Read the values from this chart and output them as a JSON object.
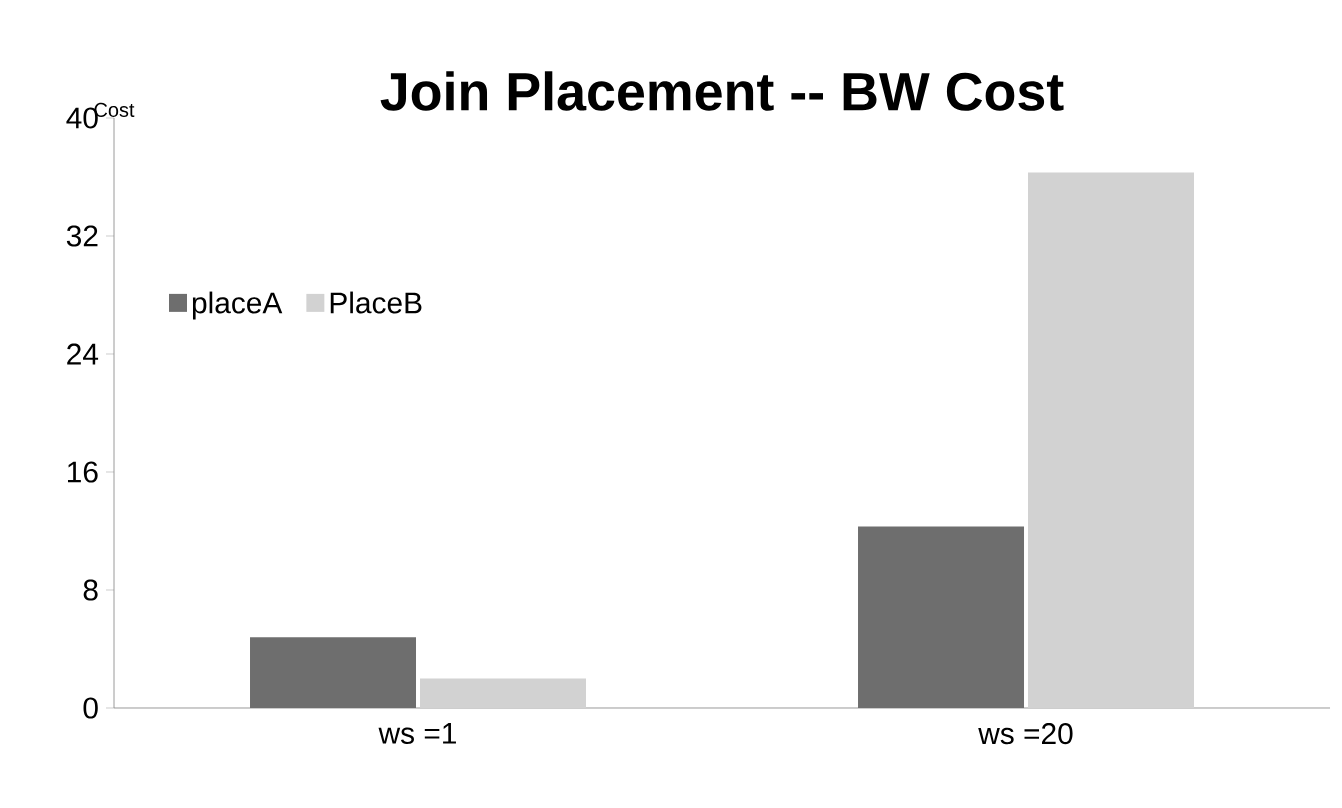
{
  "chart_data": {
    "type": "bar",
    "title": "Join Placement -- BW Cost",
    "ylabel": "Cost",
    "categories": [
      "ws =1",
      "ws =20"
    ],
    "series": [
      {
        "name": "placeA",
        "color": "#6e6e6e",
        "values": [
          4.8,
          12.3
        ]
      },
      {
        "name": "PlaceB",
        "color": "#d2d2d2",
        "values": [
          2.0,
          36.3
        ]
      }
    ],
    "ylim": [
      0,
      40
    ],
    "yticks": [
      0,
      8,
      16,
      24,
      32,
      40
    ],
    "grid": false,
    "legend": "top left"
  }
}
